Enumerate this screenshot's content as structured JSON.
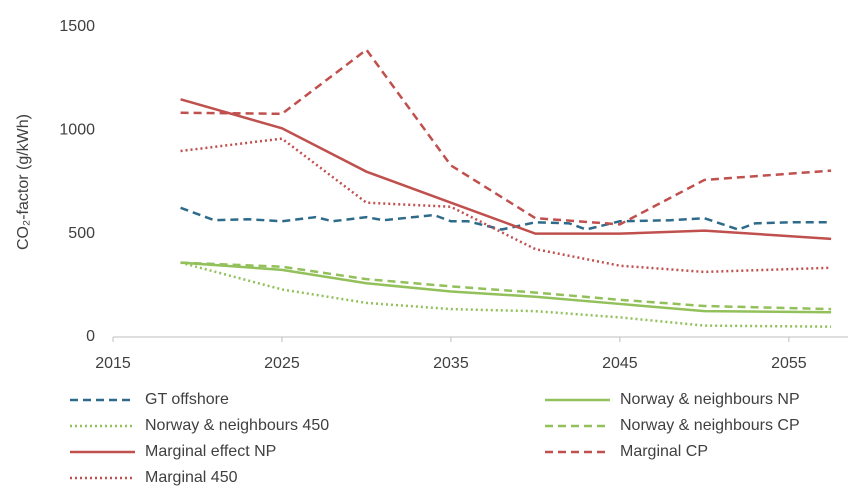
{
  "chart_data": {
    "type": "line",
    "ylabel": "CO₂-factor (g/kWh)",
    "xlim": [
      2015,
      2058.5
    ],
    "xticks": [
      2015,
      2025,
      2035,
      2045,
      2055
    ],
    "ylim": [
      0,
      1500
    ],
    "yticks": [
      0,
      500,
      1000,
      1500
    ],
    "grid": false,
    "series": [
      {
        "name": "GT offshore",
        "color": "#2e6b8a",
        "dash": "dashed",
        "x": [
          2019,
          2021,
          2023,
          2025,
          2027,
          2028,
          2030,
          2031,
          2034,
          2035,
          2036,
          2038,
          2040,
          2042,
          2043,
          2045,
          2048,
          2050,
          2052,
          2053,
          2055,
          2057.5
        ],
        "values": [
          625,
          565,
          570,
          560,
          580,
          560,
          580,
          565,
          590,
          560,
          560,
          520,
          555,
          550,
          520,
          560,
          565,
          575,
          520,
          550,
          555,
          555
        ]
      },
      {
        "name": "Norway & neighbours NP",
        "color": "#92c05a",
        "dash": "solid",
        "x": [
          2019,
          2025,
          2030,
          2035,
          2040,
          2045,
          2050,
          2057.5
        ],
        "values": [
          360,
          325,
          260,
          220,
          195,
          160,
          125,
          120
        ]
      },
      {
        "name": "Norway & neighbours 450",
        "color": "#92c05a",
        "dash": "dotted",
        "x": [
          2019,
          2025,
          2030,
          2035,
          2040,
          2045,
          2050,
          2057.5
        ],
        "values": [
          360,
          230,
          165,
          135,
          125,
          95,
          55,
          50
        ]
      },
      {
        "name": "Norway & neighbours CP",
        "color": "#92c05a",
        "dash": "dashed",
        "x": [
          2019,
          2025,
          2030,
          2035,
          2040,
          2045,
          2050,
          2057.5
        ],
        "values": [
          360,
          340,
          280,
          245,
          215,
          180,
          150,
          135
        ]
      },
      {
        "name": "Marginal effect NP",
        "color": "#c0504d",
        "dash": "solid",
        "x": [
          2019,
          2025,
          2030,
          2035,
          2040,
          2045,
          2050,
          2057.5
        ],
        "values": [
          1150,
          1010,
          800,
          650,
          500,
          500,
          515,
          475
        ]
      },
      {
        "name": "Marginal CP",
        "color": "#c0504d",
        "dash": "dashed",
        "x": [
          2019,
          2025,
          2030,
          2035,
          2040,
          2045,
          2050,
          2057.5
        ],
        "values": [
          1085,
          1080,
          1390,
          830,
          575,
          545,
          760,
          805
        ]
      },
      {
        "name": "Marginal 450",
        "color": "#c0504d",
        "dash": "dotted",
        "x": [
          2019,
          2025,
          2030,
          2035,
          2040,
          2045,
          2050,
          2057.5
        ],
        "values": [
          900,
          960,
          650,
          630,
          425,
          345,
          315,
          335
        ]
      }
    ]
  }
}
